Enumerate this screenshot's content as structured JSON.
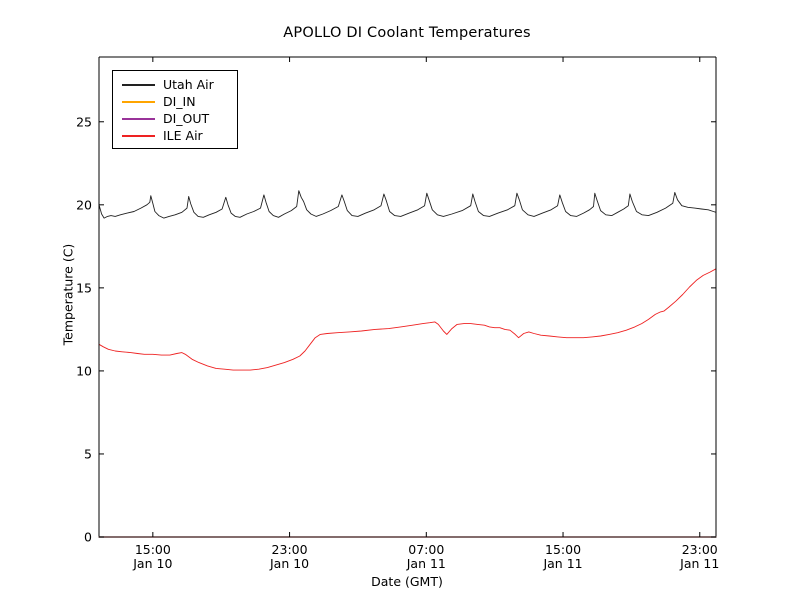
{
  "chart_data": {
    "type": "line",
    "title": "APOLLO DI Coolant Temperatures",
    "xlabel": "Date (GMT)",
    "ylabel": "Temperature (C)",
    "x_unit": "hours since Jan 10 00:00 GMT",
    "xlim": [
      11.85,
      47.95
    ],
    "ylim": [
      0,
      28.9
    ],
    "grid": false,
    "legend_position": "upper left",
    "x_ticks": [
      {
        "pos": 15,
        "time": "15:00",
        "date": "Jan 10"
      },
      {
        "pos": 23,
        "time": "23:00",
        "date": "Jan 10"
      },
      {
        "pos": 31,
        "time": "07:00",
        "date": "Jan 11"
      },
      {
        "pos": 39,
        "time": "15:00",
        "date": "Jan 11"
      },
      {
        "pos": 47,
        "time": "23:00",
        "date": "Jan 11"
      }
    ],
    "y_ticks": [
      0,
      5,
      10,
      15,
      20,
      25
    ],
    "colors": {
      "utah_air": "#222222",
      "di_in": "#ffa500",
      "di_out": "#993399",
      "ile_air": "#ee2222",
      "bottom_spine_blend": "#5a3c3c",
      "spine": "#000000"
    },
    "series": [
      {
        "name": "Utah Air",
        "color": "#222222",
        "points": [
          [
            11.85,
            20.0
          ],
          [
            11.92,
            19.75
          ],
          [
            12.0,
            19.45
          ],
          [
            12.15,
            19.2
          ],
          [
            12.35,
            19.3
          ],
          [
            12.55,
            19.35
          ],
          [
            12.8,
            19.3
          ],
          [
            13.1,
            19.4
          ],
          [
            13.5,
            19.5
          ],
          [
            13.9,
            19.6
          ],
          [
            14.3,
            19.8
          ],
          [
            14.65,
            20.0
          ],
          [
            14.82,
            20.15
          ],
          [
            14.88,
            20.55
          ],
          [
            15.0,
            20.1
          ],
          [
            15.12,
            19.6
          ],
          [
            15.35,
            19.35
          ],
          [
            15.65,
            19.2
          ],
          [
            15.95,
            19.3
          ],
          [
            16.3,
            19.4
          ],
          [
            16.7,
            19.55
          ],
          [
            17.0,
            19.8
          ],
          [
            17.1,
            20.5
          ],
          [
            17.22,
            20.05
          ],
          [
            17.4,
            19.55
          ],
          [
            17.65,
            19.3
          ],
          [
            17.95,
            19.25
          ],
          [
            18.3,
            19.4
          ],
          [
            18.7,
            19.55
          ],
          [
            19.05,
            19.75
          ],
          [
            19.27,
            20.45
          ],
          [
            19.4,
            20.0
          ],
          [
            19.58,
            19.5
          ],
          [
            19.82,
            19.3
          ],
          [
            20.1,
            19.25
          ],
          [
            20.5,
            19.45
          ],
          [
            20.9,
            19.6
          ],
          [
            21.3,
            19.8
          ],
          [
            21.5,
            20.6
          ],
          [
            21.62,
            20.15
          ],
          [
            21.8,
            19.6
          ],
          [
            22.05,
            19.35
          ],
          [
            22.35,
            19.25
          ],
          [
            22.7,
            19.45
          ],
          [
            23.1,
            19.65
          ],
          [
            23.42,
            19.9
          ],
          [
            23.54,
            20.85
          ],
          [
            23.68,
            20.45
          ],
          [
            23.82,
            20.2
          ],
          [
            24.0,
            19.7
          ],
          [
            24.25,
            19.45
          ],
          [
            24.55,
            19.3
          ],
          [
            24.95,
            19.45
          ],
          [
            25.4,
            19.65
          ],
          [
            25.85,
            19.9
          ],
          [
            26.06,
            20.6
          ],
          [
            26.2,
            20.2
          ],
          [
            26.38,
            19.65
          ],
          [
            26.65,
            19.35
          ],
          [
            27.0,
            19.3
          ],
          [
            27.45,
            19.5
          ],
          [
            27.95,
            19.7
          ],
          [
            28.35,
            19.95
          ],
          [
            28.52,
            20.65
          ],
          [
            28.66,
            20.25
          ],
          [
            28.85,
            19.6
          ],
          [
            29.15,
            19.35
          ],
          [
            29.5,
            19.3
          ],
          [
            30.0,
            19.5
          ],
          [
            30.5,
            19.7
          ],
          [
            30.9,
            19.95
          ],
          [
            31.03,
            20.7
          ],
          [
            31.16,
            20.3
          ],
          [
            31.35,
            19.7
          ],
          [
            31.65,
            19.4
          ],
          [
            32.0,
            19.3
          ],
          [
            32.5,
            19.45
          ],
          [
            33.1,
            19.65
          ],
          [
            33.6,
            19.95
          ],
          [
            33.72,
            20.65
          ],
          [
            33.85,
            20.2
          ],
          [
            34.05,
            19.6
          ],
          [
            34.35,
            19.35
          ],
          [
            34.7,
            19.3
          ],
          [
            35.2,
            19.5
          ],
          [
            35.75,
            19.7
          ],
          [
            36.18,
            19.95
          ],
          [
            36.3,
            20.7
          ],
          [
            36.44,
            20.3
          ],
          [
            36.62,
            19.7
          ],
          [
            36.95,
            19.4
          ],
          [
            37.3,
            19.3
          ],
          [
            37.8,
            19.5
          ],
          [
            38.3,
            19.7
          ],
          [
            38.68,
            19.95
          ],
          [
            38.81,
            20.6
          ],
          [
            38.95,
            20.15
          ],
          [
            39.15,
            19.6
          ],
          [
            39.45,
            19.35
          ],
          [
            39.8,
            19.3
          ],
          [
            40.2,
            19.5
          ],
          [
            40.55,
            19.7
          ],
          [
            40.78,
            19.9
          ],
          [
            40.86,
            20.7
          ],
          [
            41.0,
            20.25
          ],
          [
            41.2,
            19.65
          ],
          [
            41.5,
            19.4
          ],
          [
            41.85,
            19.35
          ],
          [
            42.2,
            19.55
          ],
          [
            42.55,
            19.75
          ],
          [
            42.82,
            19.95
          ],
          [
            42.91,
            20.65
          ],
          [
            43.05,
            20.2
          ],
          [
            43.3,
            19.6
          ],
          [
            43.62,
            19.4
          ],
          [
            44.0,
            19.35
          ],
          [
            44.5,
            19.55
          ],
          [
            45.0,
            19.8
          ],
          [
            45.42,
            20.1
          ],
          [
            45.54,
            20.75
          ],
          [
            45.7,
            20.3
          ],
          [
            45.95,
            19.95
          ],
          [
            46.3,
            19.85
          ],
          [
            46.7,
            19.8
          ],
          [
            47.1,
            19.75
          ],
          [
            47.5,
            19.7
          ],
          [
            47.8,
            19.6
          ],
          [
            47.95,
            19.55
          ]
        ]
      },
      {
        "name": "DI_IN",
        "color": "#ffa500",
        "points": [
          [
            11.85,
            0
          ],
          [
            47.95,
            0
          ]
        ]
      },
      {
        "name": "DI_OUT",
        "color": "#993399",
        "points": [
          [
            11.85,
            0
          ],
          [
            47.95,
            0
          ]
        ]
      },
      {
        "name": "ILE Air",
        "color": "#ee2222",
        "points": [
          [
            11.85,
            11.6
          ],
          [
            12.1,
            11.45
          ],
          [
            12.4,
            11.3
          ],
          [
            12.8,
            11.2
          ],
          [
            13.2,
            11.15
          ],
          [
            13.7,
            11.1
          ],
          [
            14.1,
            11.05
          ],
          [
            14.5,
            11.0
          ],
          [
            15.0,
            11.0
          ],
          [
            15.5,
            10.95
          ],
          [
            16.0,
            10.95
          ],
          [
            16.4,
            11.05
          ],
          [
            16.7,
            11.1
          ],
          [
            16.9,
            11.0
          ],
          [
            17.3,
            10.7
          ],
          [
            17.7,
            10.5
          ],
          [
            18.2,
            10.3
          ],
          [
            18.7,
            10.15
          ],
          [
            19.2,
            10.1
          ],
          [
            19.7,
            10.05
          ],
          [
            20.2,
            10.05
          ],
          [
            20.7,
            10.05
          ],
          [
            21.2,
            10.1
          ],
          [
            21.7,
            10.2
          ],
          [
            22.2,
            10.35
          ],
          [
            22.7,
            10.5
          ],
          [
            23.2,
            10.7
          ],
          [
            23.6,
            10.9
          ],
          [
            23.9,
            11.2
          ],
          [
            24.2,
            11.6
          ],
          [
            24.5,
            12.0
          ],
          [
            24.8,
            12.2
          ],
          [
            25.2,
            12.25
          ],
          [
            25.8,
            12.3
          ],
          [
            26.5,
            12.35
          ],
          [
            27.2,
            12.4
          ],
          [
            28.0,
            12.5
          ],
          [
            28.8,
            12.55
          ],
          [
            29.5,
            12.65
          ],
          [
            30.2,
            12.75
          ],
          [
            30.8,
            12.85
          ],
          [
            31.2,
            12.9
          ],
          [
            31.5,
            12.95
          ],
          [
            31.7,
            12.8
          ],
          [
            32.0,
            12.4
          ],
          [
            32.2,
            12.2
          ],
          [
            32.5,
            12.55
          ],
          [
            32.8,
            12.8
          ],
          [
            33.2,
            12.85
          ],
          [
            33.6,
            12.85
          ],
          [
            34.0,
            12.8
          ],
          [
            34.4,
            12.75
          ],
          [
            34.7,
            12.65
          ],
          [
            35.0,
            12.6
          ],
          [
            35.3,
            12.6
          ],
          [
            35.6,
            12.5
          ],
          [
            35.9,
            12.45
          ],
          [
            36.2,
            12.2
          ],
          [
            36.4,
            12.0
          ],
          [
            36.7,
            12.25
          ],
          [
            37.0,
            12.35
          ],
          [
            37.3,
            12.25
          ],
          [
            37.7,
            12.15
          ],
          [
            38.2,
            12.1
          ],
          [
            38.7,
            12.05
          ],
          [
            39.2,
            12.0
          ],
          [
            39.7,
            12.0
          ],
          [
            40.2,
            12.0
          ],
          [
            40.7,
            12.05
          ],
          [
            41.2,
            12.1
          ],
          [
            41.7,
            12.2
          ],
          [
            42.2,
            12.3
          ],
          [
            42.7,
            12.45
          ],
          [
            43.2,
            12.65
          ],
          [
            43.6,
            12.85
          ],
          [
            44.0,
            13.1
          ],
          [
            44.4,
            13.4
          ],
          [
            44.7,
            13.55
          ],
          [
            44.9,
            13.6
          ],
          [
            45.2,
            13.85
          ],
          [
            45.6,
            14.2
          ],
          [
            46.0,
            14.6
          ],
          [
            46.4,
            15.05
          ],
          [
            46.8,
            15.45
          ],
          [
            47.2,
            15.75
          ],
          [
            47.6,
            15.95
          ],
          [
            47.95,
            16.15
          ]
        ]
      }
    ]
  }
}
